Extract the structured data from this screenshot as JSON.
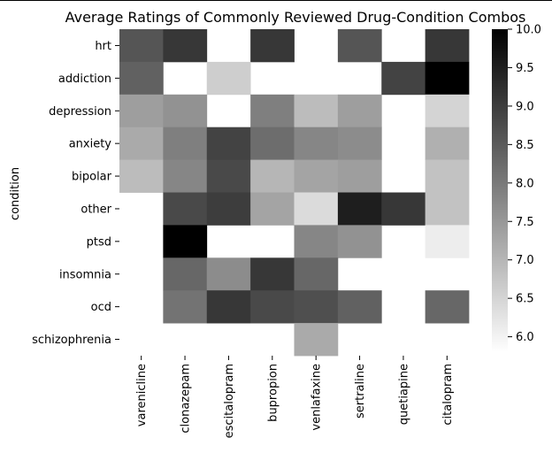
{
  "chart_data": {
    "type": "heatmap",
    "title": "Average Ratings of Commonly Reviewed Drug-Condition Combos",
    "xlabel": "",
    "ylabel": "condition",
    "x_categories": [
      "varenicline",
      "clonazepam",
      "escitalopram",
      "bupropion",
      "venlafaxine",
      "sertraline",
      "quetiapine",
      "citalopram"
    ],
    "y_categories": [
      "hrt",
      "addiction",
      "depression",
      "anxiety",
      "bipolar",
      "other",
      "ptsd",
      "insomnia",
      "ocd",
      "schizophrenia"
    ],
    "values": [
      [
        8.6,
        9.1,
        null,
        9.1,
        null,
        8.6,
        null,
        9.1
      ],
      [
        8.4,
        null,
        6.6,
        null,
        null,
        null,
        8.9,
        10.0
      ],
      [
        7.4,
        7.6,
        null,
        7.9,
        6.9,
        7.4,
        null,
        6.5
      ],
      [
        7.2,
        7.9,
        8.9,
        8.2,
        7.8,
        7.7,
        null,
        7.1
      ],
      [
        6.9,
        7.8,
        8.8,
        7.0,
        7.3,
        7.4,
        null,
        6.8
      ],
      [
        null,
        8.8,
        9.0,
        7.3,
        6.4,
        9.5,
        9.1,
        6.8
      ],
      [
        null,
        10.0,
        null,
        null,
        7.8,
        7.6,
        null,
        6.1
      ],
      [
        null,
        8.3,
        7.7,
        9.1,
        8.3,
        null,
        null,
        null
      ],
      [
        null,
        8.1,
        9.1,
        8.8,
        8.7,
        8.4,
        null,
        8.3
      ],
      [
        null,
        null,
        null,
        null,
        7.2,
        null,
        null,
        null
      ]
    ],
    "colorbar": {
      "min": 5.8,
      "max": 10.0,
      "ticks": [
        6.0,
        6.5,
        7.0,
        7.5,
        8.0,
        8.5,
        9.0,
        9.5,
        10.0
      ],
      "tick_labels": [
        "6.0",
        "6.5",
        "7.0",
        "7.5",
        "8.0",
        "8.5",
        "9.0",
        "9.5",
        "10.0"
      ],
      "colormap": "Greys",
      "low_color": "#ffffff",
      "high_color": "#000000"
    },
    "grid": false
  }
}
